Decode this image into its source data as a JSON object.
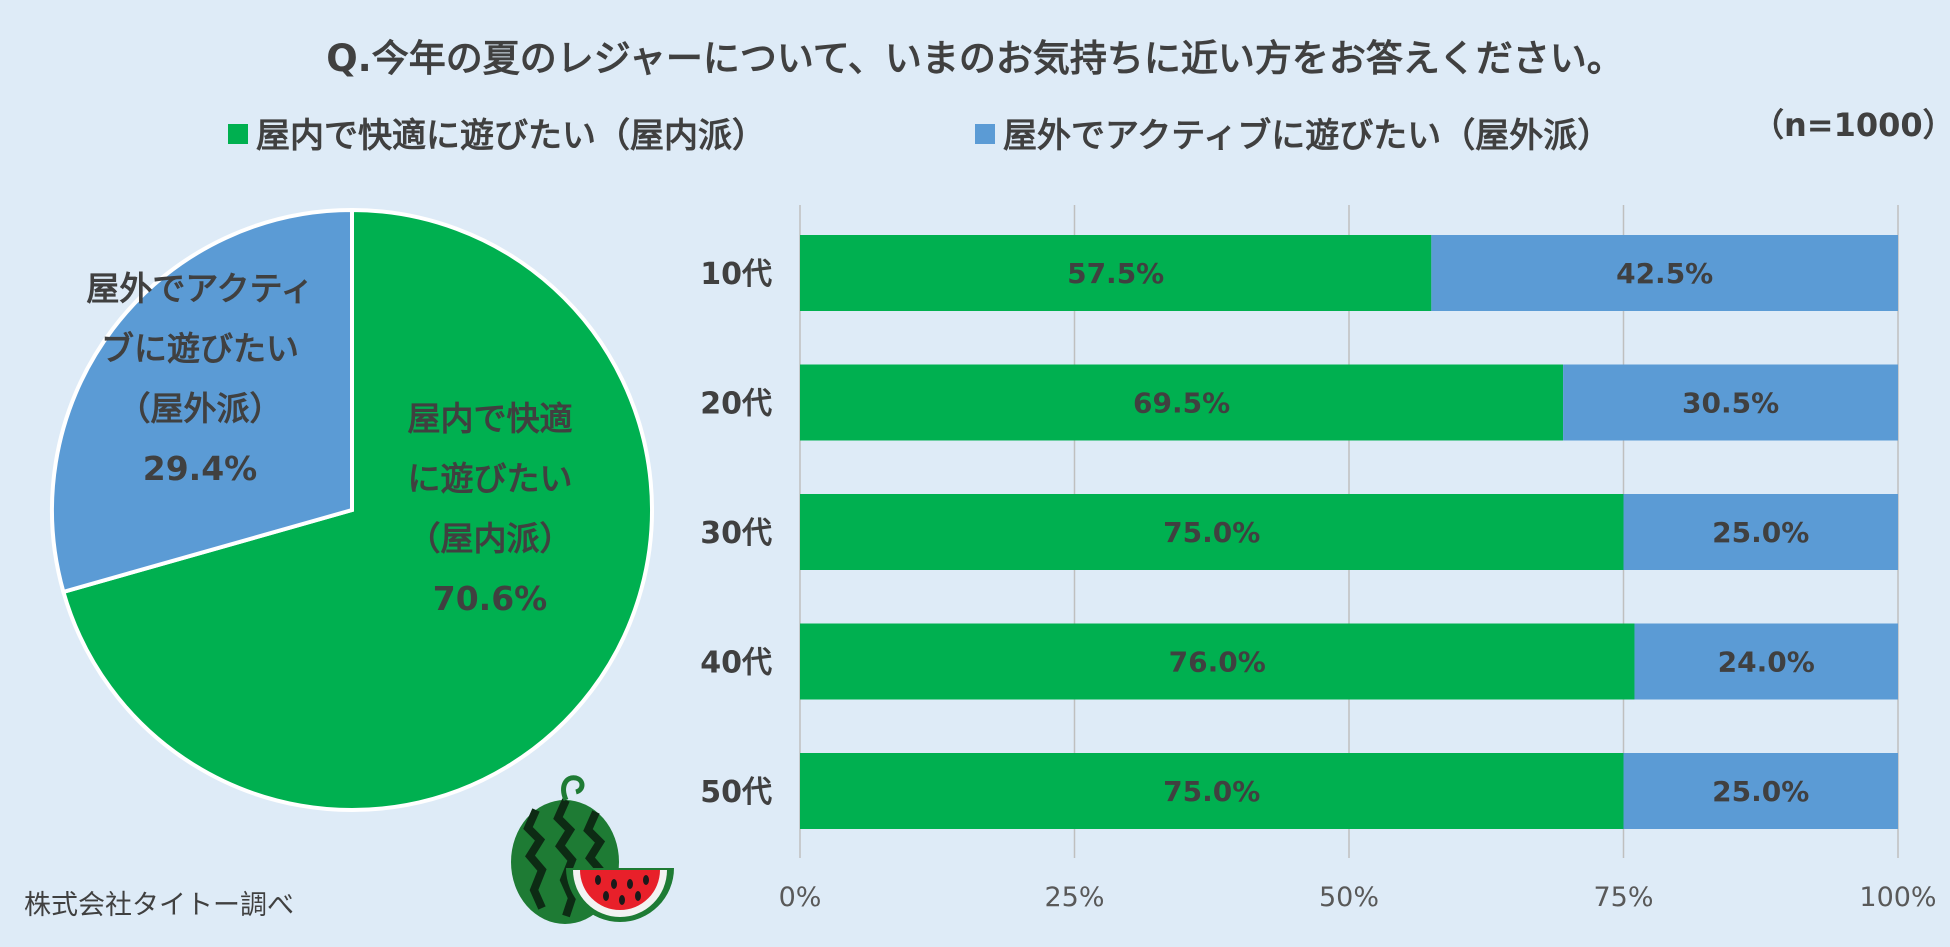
{
  "colors": {
    "indoor": "#00b050",
    "outdoor": "#5b9bd5",
    "background": "#deebf7",
    "text": "#404040"
  },
  "chart_data": [
    {
      "type": "pie",
      "title": "Q.今年の夏のレジャーについて、いまのお気持ちに近い方をお答えください。",
      "sample_size": "（n=1000）",
      "slices": [
        {
          "label_lines": [
            "屋内で快適",
            "に遊びたい",
            "（屋内派）"
          ],
          "value": 70.6,
          "value_label": "70.6%",
          "color": "#00b050"
        },
        {
          "label_lines": [
            "屋外でアクティ",
            "ブに遊びたい",
            "（屋外派）"
          ],
          "value": 29.4,
          "value_label": "29.4%",
          "color": "#5b9bd5"
        }
      ]
    },
    {
      "type": "bar",
      "orientation": "horizontal",
      "stacked": true,
      "categories": [
        "10代",
        "20代",
        "30代",
        "40代",
        "50代"
      ],
      "series": [
        {
          "name": "屋内で快適に遊びたい（屋内派）",
          "values": [
            57.5,
            69.5,
            75.0,
            76.0,
            75.0
          ],
          "labels": [
            "57.5%",
            "69.5%",
            "75.0%",
            "76.0%",
            "75.0%"
          ],
          "color": "#00b050"
        },
        {
          "name": "屋外でアクティブに遊びたい（屋外派）",
          "values": [
            42.5,
            30.5,
            25.0,
            24.0,
            25.0
          ],
          "labels": [
            "42.5%",
            "30.5%",
            "25.0%",
            "24.0%",
            "25.0%"
          ],
          "color": "#5b9bd5"
        }
      ],
      "xlim": [
        0,
        100
      ],
      "xticks": [
        0,
        25,
        50,
        75,
        100
      ],
      "xtick_labels": [
        "0%",
        "25%",
        "50%",
        "75%",
        "100%"
      ],
      "grid": true,
      "legend": "top"
    }
  ],
  "source": "株式会社タイトー調べ",
  "decoration": {
    "icon": "watermelon-icon"
  }
}
